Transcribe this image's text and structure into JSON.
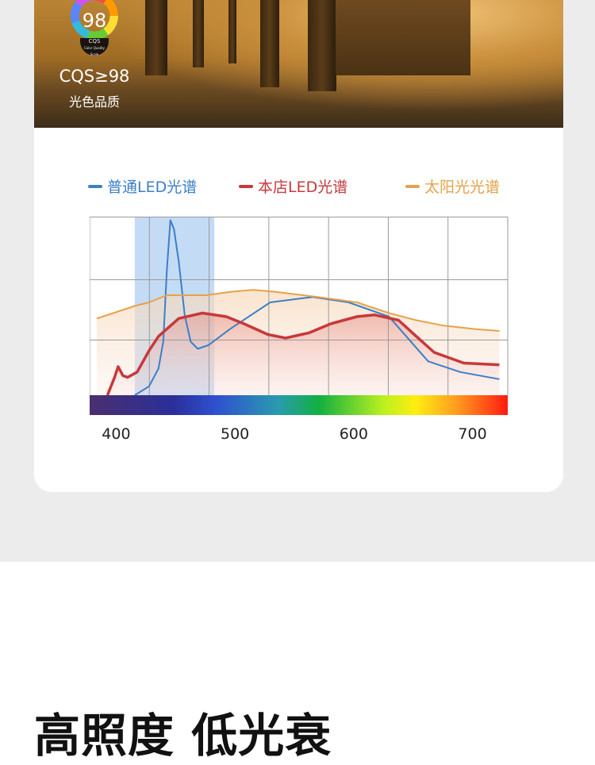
{
  "hero": {
    "badge_value": "98",
    "badge_caption": "CQS",
    "badge_subcaption": "Color Quality Scale",
    "metric": "CQS≥98",
    "metric_label": "光色品质"
  },
  "chart_data": {
    "type": "line",
    "xlabel": "",
    "ylabel": "",
    "x_ticks": [
      400,
      500,
      600,
      700
    ],
    "xlim": [
      375,
      727
    ],
    "ylim": [
      0,
      1
    ],
    "grid": true,
    "legend_position": "top",
    "highlight_band": [
      413,
      480
    ],
    "highlight_color": "#9cc3ee",
    "spectrum_bar": true,
    "series": [
      {
        "name": "普通LED光谱",
        "color": "#3b7fc8",
        "points": [
          [
            413,
            0
          ],
          [
            425,
            0.05
          ],
          [
            433,
            0.15
          ],
          [
            437,
            0.3
          ],
          [
            440,
            0.7
          ],
          [
            443,
            0.98
          ],
          [
            446,
            0.93
          ],
          [
            450,
            0.75
          ],
          [
            455,
            0.45
          ],
          [
            460,
            0.3
          ],
          [
            466,
            0.26
          ],
          [
            475,
            0.28
          ],
          [
            493,
            0.37
          ],
          [
            527,
            0.52
          ],
          [
            563,
            0.55
          ],
          [
            593,
            0.52
          ],
          [
            627,
            0.44
          ],
          [
            660,
            0.19
          ],
          [
            687,
            0.13
          ],
          [
            720,
            0.09
          ]
        ]
      },
      {
        "name": "本店LED光谱",
        "color": "#c8383a",
        "points": [
          [
            390,
            0
          ],
          [
            396,
            0.1
          ],
          [
            399,
            0.16
          ],
          [
            403,
            0.11
          ],
          [
            407,
            0.1
          ],
          [
            415,
            0.13
          ],
          [
            425,
            0.25
          ],
          [
            433,
            0.33
          ],
          [
            450,
            0.43
          ],
          [
            470,
            0.46
          ],
          [
            490,
            0.44
          ],
          [
            505,
            0.4
          ],
          [
            525,
            0.34
          ],
          [
            540,
            0.32
          ],
          [
            560,
            0.35
          ],
          [
            578,
            0.4
          ],
          [
            600,
            0.44
          ],
          [
            615,
            0.45
          ],
          [
            635,
            0.42
          ],
          [
            650,
            0.33
          ],
          [
            665,
            0.24
          ],
          [
            690,
            0.18
          ],
          [
            720,
            0.17
          ]
        ]
      },
      {
        "name": "太阳光光谱",
        "color": "#e6a24a",
        "points": [
          [
            381,
            0.43
          ],
          [
            395,
            0.46
          ],
          [
            413,
            0.5
          ],
          [
            425,
            0.52
          ],
          [
            440,
            0.56
          ],
          [
            473,
            0.56
          ],
          [
            495,
            0.58
          ],
          [
            513,
            0.59
          ],
          [
            530,
            0.58
          ],
          [
            567,
            0.55
          ],
          [
            600,
            0.52
          ],
          [
            627,
            0.46
          ],
          [
            650,
            0.42
          ],
          [
            673,
            0.39
          ],
          [
            700,
            0.37
          ],
          [
            720,
            0.36
          ]
        ]
      }
    ]
  },
  "headline": "高照度 低光衰"
}
